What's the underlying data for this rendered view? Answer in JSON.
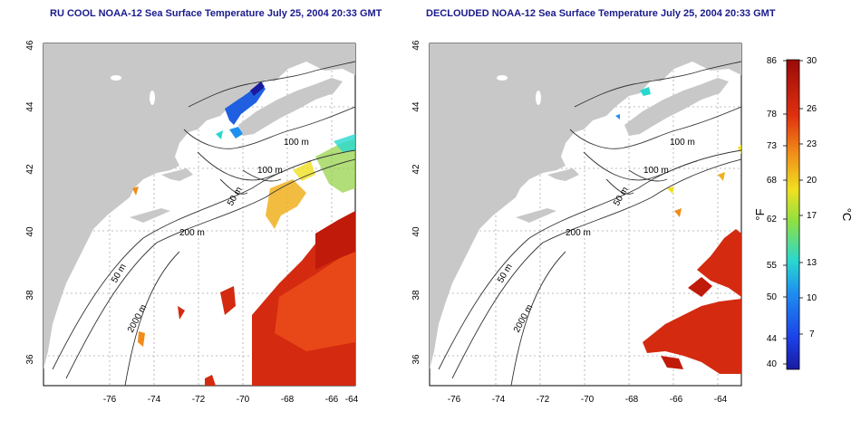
{
  "panels": [
    {
      "title": "RU COOL NOAA-12 Sea Surface Temperature July 25, 2004 20:33 GMT",
      "x_ticks": [
        "-76",
        "-74",
        "-72",
        "-70",
        "-68",
        "-66",
        "-64"
      ],
      "y_ticks": [
        "36",
        "38",
        "40",
        "42",
        "44",
        "46"
      ],
      "contour_labels": [
        "100 m",
        "100 m",
        "50 m",
        "200 m",
        "50 m",
        "2000 m"
      ]
    },
    {
      "title": "DECLOUDED NOAA-12 Sea Surface Temperature July 25, 2004 20:33 GMT",
      "x_ticks": [
        "-76",
        "-74",
        "-72",
        "-70",
        "-68",
        "-66",
        "-64"
      ],
      "y_ticks": [
        "36",
        "38",
        "40",
        "42",
        "44",
        "46"
      ],
      "contour_labels": [
        "100 m",
        "100 m",
        "50 m",
        "200 m",
        "50 m",
        "2000 m"
      ]
    }
  ],
  "colorbar": {
    "fahrenheit_label": "°F",
    "celsius_label": "°C",
    "fahrenheit_ticks": [
      "86",
      "78",
      "73",
      "68",
      "62",
      "55",
      "50",
      "44",
      "40"
    ],
    "celsius_ticks": [
      "30",
      "26",
      "23",
      "20",
      "17",
      "13",
      "10",
      "7"
    ],
    "range_c": [
      4,
      30
    ]
  },
  "colors": {
    "land": "#c8c8c8",
    "ocean": "#ffffff",
    "grid": "#aaaaaa",
    "contour": "#333333",
    "title": "#1a1a8c",
    "warm": "#d42a10",
    "hot": "#c01a0a",
    "mid": "#f28c1a",
    "cool": "#2060e0"
  }
}
